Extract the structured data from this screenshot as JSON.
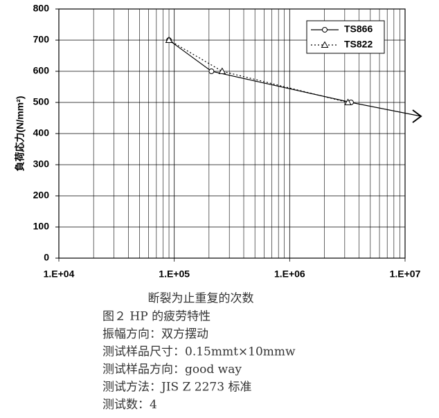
{
  "chart_data": {
    "type": "line",
    "ylabel": "負荷応力(N/mm²)",
    "xlabel": "断裂为止重复的次数",
    "xlim": [
      10000,
      10000000
    ],
    "ylim": [
      0,
      800
    ],
    "xticks": [
      {
        "value": 10000,
        "label": "1.E+04"
      },
      {
        "value": 100000,
        "label": "1.E+05"
      },
      {
        "value": 1000000,
        "label": "1.E+06"
      },
      {
        "value": 10000000,
        "label": "1.E+07"
      }
    ],
    "yticks": [
      0,
      100,
      200,
      300,
      400,
      500,
      600,
      700,
      800
    ],
    "log_x": true,
    "grid": true,
    "minor_grid": true,
    "legend": "upper right",
    "series": [
      {
        "name": "TS866",
        "color": "#000000",
        "marker": "circle",
        "dashed": false,
        "x": [
          90000,
          210000,
          3400000
        ],
        "values": [
          700,
          600,
          500
        ]
      },
      {
        "name": "TS822",
        "color": "#000000",
        "marker": "triangle",
        "dashed": true,
        "x": [
          90000,
          260000,
          3200000
        ],
        "values": [
          700,
          600,
          500
        ]
      }
    ]
  },
  "caption": [
    "图２ HP 的疲劳特性",
    "振幅方向：双方摆动",
    "测试样品尺寸：0.15mmt×10mmw",
    "测试样品方向：good way",
    "测试方法：JIS Z 2273 标准",
    "测试数：4"
  ]
}
